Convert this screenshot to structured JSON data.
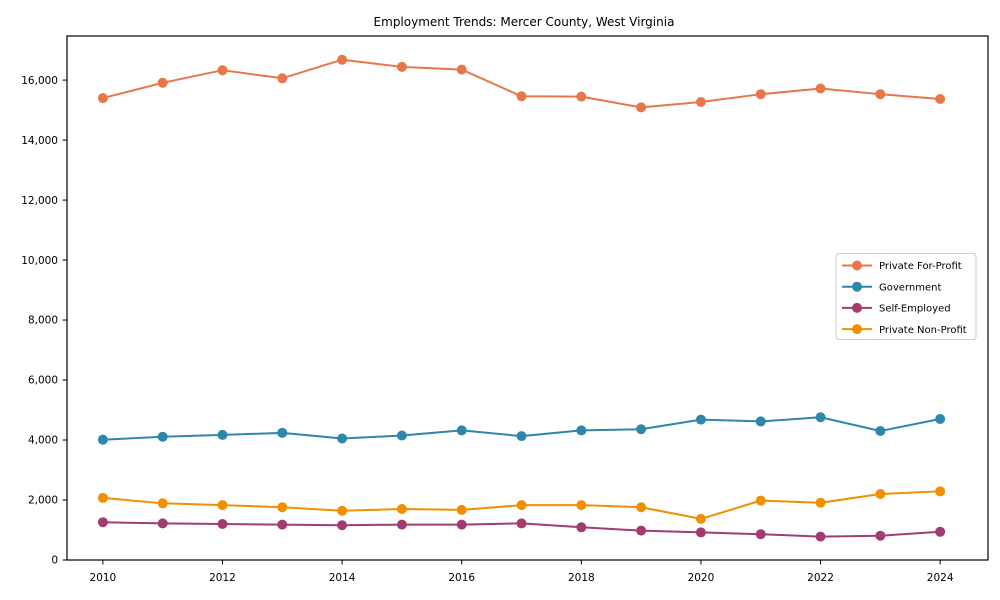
{
  "chart_data": {
    "type": "line",
    "title": "Employment Trends: Mercer County, West Virginia",
    "xlabel": "",
    "ylabel": "",
    "x": [
      2010,
      2011,
      2012,
      2013,
      2014,
      2015,
      2016,
      2017,
      2018,
      2019,
      2020,
      2021,
      2022,
      2023,
      2024
    ],
    "xticks": [
      2010,
      2012,
      2014,
      2016,
      2018,
      2020,
      2022,
      2024
    ],
    "yticks": [
      0,
      2000,
      4000,
      6000,
      8000,
      10000,
      12000,
      14000,
      16000
    ],
    "xlim": [
      2009.4,
      2024.8
    ],
    "ylim": [
      0,
      17470
    ],
    "grid": false,
    "legend_position": "center right",
    "background_color": "#ffffff",
    "axis_color": "#000000",
    "legend_border_color": "#cccccc",
    "series": [
      {
        "name": "Private For-Profit",
        "color": "#E8764A",
        "values": [
          15400,
          15910,
          16330,
          16060,
          16680,
          16440,
          16350,
          15460,
          15450,
          15090,
          15270,
          15530,
          15720,
          15530,
          15370
        ]
      },
      {
        "name": "Government",
        "color": "#2E86AB",
        "values": [
          4010,
          4110,
          4170,
          4240,
          4050,
          4150,
          4320,
          4130,
          4320,
          4360,
          4680,
          4620,
          4760,
          4300,
          4700
        ]
      },
      {
        "name": "Self-Employed",
        "color": "#A23B72",
        "values": [
          1260,
          1220,
          1200,
          1180,
          1160,
          1180,
          1180,
          1220,
          1090,
          980,
          920,
          860,
          780,
          810,
          940
        ]
      },
      {
        "name": "Private Non-Profit",
        "color": "#F18F01",
        "values": [
          2070,
          1890,
          1830,
          1760,
          1640,
          1700,
          1670,
          1830,
          1830,
          1760,
          1370,
          1980,
          1910,
          2200,
          2290
        ]
      }
    ]
  }
}
